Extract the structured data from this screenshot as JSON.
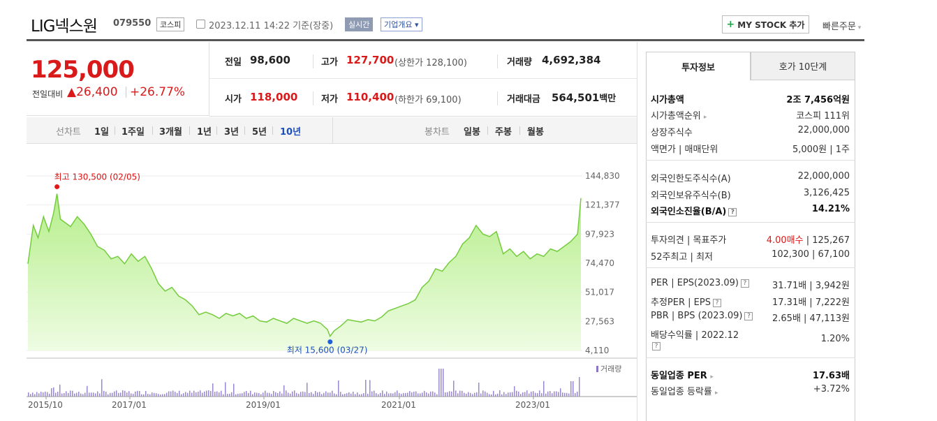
{
  "header": {
    "name": "LIG넥스원",
    "code": "079550",
    "market": "코스피",
    "datetime": "2023.12.11 14:22",
    "basis": "기준(장중)",
    "live": "실시간",
    "company_info": "기업개요",
    "mystock": "MY STOCK 추가",
    "quick_order": "빠른주문"
  },
  "price": {
    "current": "125,000",
    "change_label": "전일대비",
    "change": "26,400",
    "change_pct": "+26.77%"
  },
  "info": {
    "prev_label": "전일",
    "prev": "98,600",
    "high_label": "고가",
    "high": "127,700",
    "upper_limit": "(상한가 128,100)",
    "volume_label": "거래량",
    "volume": "4,692,384",
    "open_label": "시가",
    "open": "118,000",
    "low_label": "저가",
    "low": "110,400",
    "lower_limit": "(하한가 69,100)",
    "amount_label": "거래대금",
    "amount": "564,501",
    "amount_unit": "백만"
  },
  "periods": {
    "line_label": "선차트",
    "line": [
      "1일",
      "1주일",
      "3개월",
      "1년",
      "3년",
      "5년",
      "10년"
    ],
    "selected": "10년",
    "candle_label": "봉차트",
    "candle": [
      "일봉",
      "주봉",
      "월봉"
    ]
  },
  "chart_data": {
    "type": "area",
    "x_ticks": [
      "2015/10",
      "2017/01",
      "2019/01",
      "2021/01",
      "2023/01"
    ],
    "y_ticks": [
      144830,
      121377,
      97923,
      74470,
      51017,
      27563,
      4110
    ],
    "ylim": [
      4110,
      144830
    ],
    "annotation_high": "최고 130,500 (02/05)",
    "annotation_low": "최저 15,600 (03/27)",
    "volume_legend": "거래량",
    "x": [
      2015.77,
      2015.85,
      2015.92,
      2016.0,
      2016.08,
      2016.15,
      2016.2,
      2016.25,
      2016.3,
      2016.4,
      2016.5,
      2016.6,
      2016.7,
      2016.8,
      2016.9,
      2017.0,
      2017.1,
      2017.2,
      2017.3,
      2017.4,
      2017.5,
      2017.6,
      2017.7,
      2017.8,
      2017.9,
      2018.0,
      2018.1,
      2018.2,
      2018.3,
      2018.4,
      2018.5,
      2018.6,
      2018.7,
      2018.8,
      2018.9,
      2019.0,
      2019.1,
      2019.2,
      2019.3,
      2019.4,
      2019.5,
      2019.6,
      2019.7,
      2019.8,
      2019.9,
      2020.0,
      2020.1,
      2020.2,
      2020.24,
      2020.3,
      2020.4,
      2020.5,
      2020.6,
      2020.7,
      2020.8,
      2020.9,
      2021.0,
      2021.1,
      2021.2,
      2021.3,
      2021.4,
      2021.5,
      2021.6,
      2021.7,
      2021.8,
      2021.9,
      2022.0,
      2022.1,
      2022.2,
      2022.3,
      2022.4,
      2022.5,
      2022.6,
      2022.7,
      2022.8,
      2022.9,
      2023.0,
      2023.1,
      2023.2,
      2023.3,
      2023.4,
      2023.5,
      2023.6,
      2023.7,
      2023.8,
      2023.9,
      2023.95
    ],
    "values": [
      74000,
      105000,
      95000,
      112000,
      100000,
      115000,
      130500,
      110000,
      108000,
      104000,
      112000,
      106000,
      98000,
      88000,
      85000,
      78000,
      80000,
      74000,
      82000,
      76000,
      80000,
      70000,
      58000,
      52000,
      55000,
      48000,
      45000,
      40000,
      33000,
      35000,
      33000,
      30000,
      34000,
      32000,
      34000,
      30000,
      32000,
      28000,
      27000,
      30000,
      28000,
      26000,
      30000,
      28000,
      26000,
      28000,
      26000,
      21000,
      15600,
      20000,
      24000,
      29000,
      28000,
      27000,
      29000,
      28000,
      31000,
      36000,
      38000,
      40000,
      42000,
      45000,
      55000,
      60000,
      70000,
      68000,
      75000,
      80000,
      90000,
      95000,
      105000,
      98000,
      96000,
      100000,
      82000,
      86000,
      80000,
      84000,
      78000,
      82000,
      80000,
      86000,
      84000,
      88000,
      92000,
      98000,
      127000
    ]
  },
  "right_panel": {
    "tab_invest": "투자정보",
    "tab_hoga": "호가 10단계",
    "market_cap_label": "시가총액",
    "market_cap": "2조 7,456억원",
    "cap_rank_label": "시가총액순위",
    "cap_rank": "코스피 111위",
    "shares_label": "상장주식수",
    "shares": "22,000,000",
    "par_label": "액면가 | 매매단위",
    "par": "5,000원 | 1주",
    "foreign_limit_label": "외국인한도주식수(A)",
    "foreign_limit": "22,000,000",
    "foreign_hold_label": "외국인보유주식수(B)",
    "foreign_hold": "3,126,425",
    "foreign_rate_label": "외국인소진율(B/A)",
    "foreign_rate": "14.21%",
    "opinion_label": "투자의견 | 목표주가",
    "opinion": "4.00매수",
    "target": "125,267",
    "w52_label": "52주최고 | 최저",
    "w52": "102,300 | 67,100",
    "per_label": "PER | EPS(2023.09)",
    "per": "31.71배 | 3,942원",
    "est_per_label": "추정PER | EPS",
    "est_per": "17.31배 | 7,222원",
    "pbr_label": "PBR | BPS (2023.09)",
    "pbr": "2.65배 | 47,113원",
    "div_label": "배당수익률 | 2022.12",
    "div": "1.20%",
    "ind_per_label": "동일업종 PER",
    "ind_per": "17.63배",
    "ind_rate_label": "동일업종 등락률",
    "ind_rate": "+3.72%"
  }
}
